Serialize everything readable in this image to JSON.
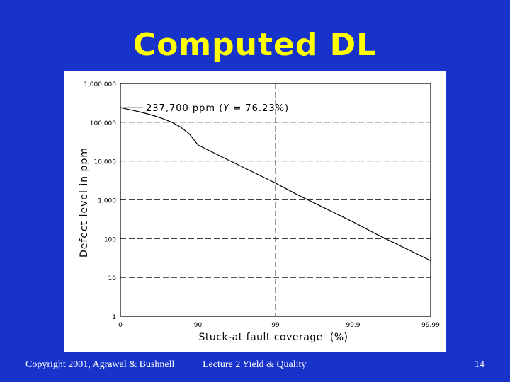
{
  "slide": {
    "title": "Computed DL",
    "footer_left": "Copyright 2001, Agrawal & Bushnell",
    "footer_center": "Lecture 2 Yield & Quality",
    "page_number": "14"
  },
  "colors": {
    "background": "#1833c9",
    "title": "#ffff00",
    "panel": "#ffffff",
    "curve": "#000000"
  },
  "chart_data": {
    "type": "line",
    "title": "",
    "xlabel": "Stuck-at fault coverage  (%)",
    "ylabel": "Defect level in ppm",
    "x_scale": "log of (100 - coverage)",
    "y_scale": "log",
    "xticks": [
      {
        "value": 0,
        "label": "0"
      },
      {
        "value": 90,
        "label": "90"
      },
      {
        "value": 99,
        "label": "99"
      },
      {
        "value": 99.9,
        "label": "99.9"
      },
      {
        "value": 99.99,
        "label": "99.99"
      }
    ],
    "yticks": [
      {
        "value": 1,
        "label": "1"
      },
      {
        "value": 10,
        "label": "10"
      },
      {
        "value": 100,
        "label": "100"
      },
      {
        "value": 1000,
        "label": "1,000"
      },
      {
        "value": 10000,
        "label": "10,000"
      },
      {
        "value": 100000,
        "label": "100,000"
      },
      {
        "value": 1000000,
        "label": "1,000,000"
      }
    ],
    "grid": true,
    "series": [
      {
        "x": [
          0,
          10,
          20,
          30,
          40,
          50,
          60,
          70,
          80,
          90,
          95,
          99,
          99.5,
          99.9,
          99.95,
          99.99
        ],
        "y": [
          237700,
          213000,
          190000,
          168000,
          145000,
          122000,
          99000,
          75000,
          50000,
          26000,
          13000,
          2700,
          1300,
          270,
          130,
          27
        ]
      }
    ],
    "annotation": {
      "text_prefix": "237,700 ppm (",
      "text_italic": "Y",
      "text_suffix": " = 76.23%)",
      "x": 0,
      "y": 237700
    }
  }
}
